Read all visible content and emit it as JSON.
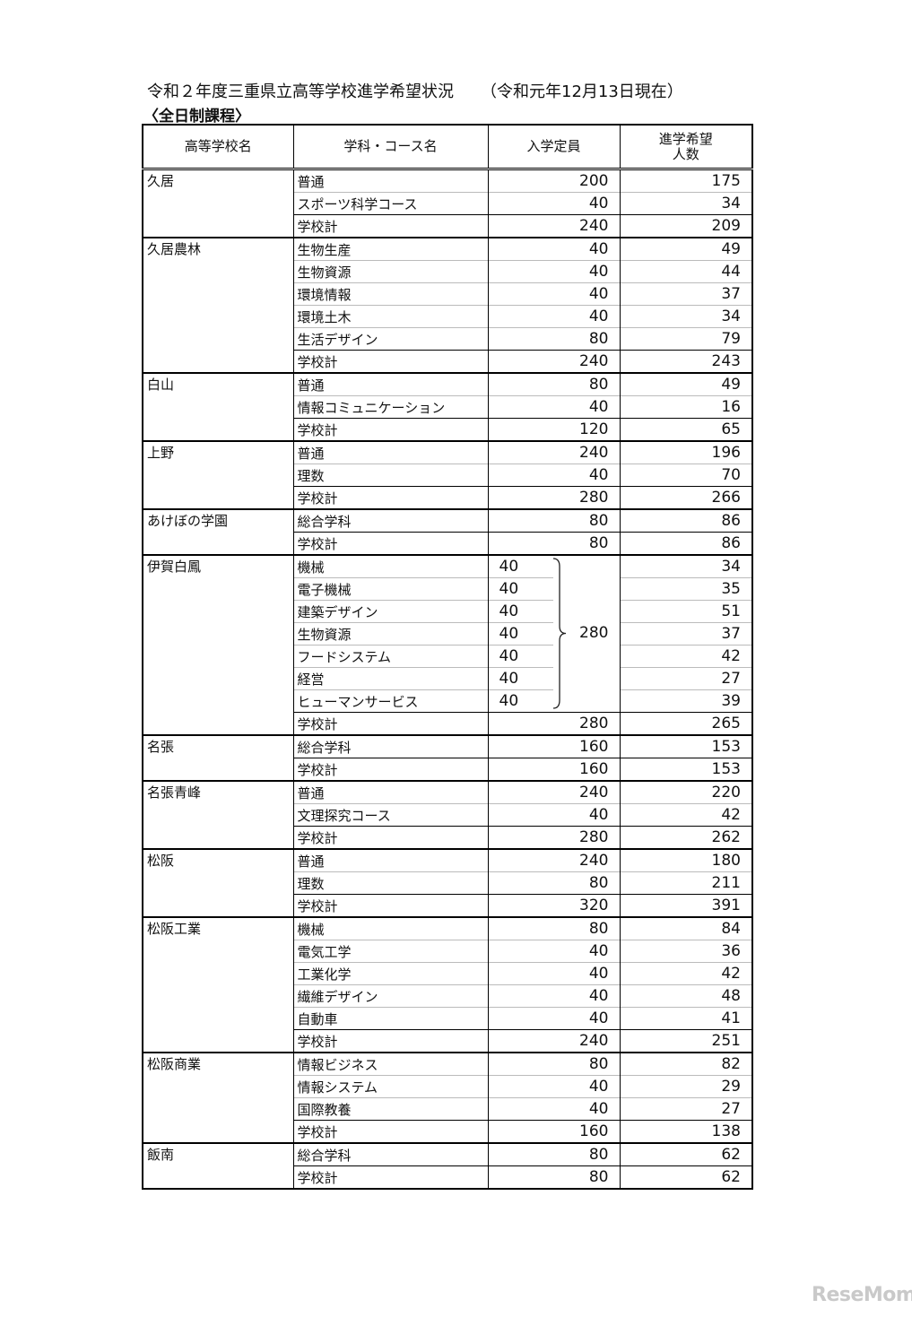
{
  "title": "令和２年度三重県立高等学校進学希望状況",
  "date_note": "（令和元年12月13日現在）",
  "subtitle": "〈全日制課程〉",
  "headers": [
    "高等学校名",
    "学科・コース名",
    "入学定員",
    "進学希望\n人数"
  ],
  "schools": [
    {
      "name": "久居",
      "rows": [
        {
          "course": "普通",
          "capacity": "200",
          "applicants": "175"
        },
        {
          "course": "スポーツ科学コース",
          "capacity": "40",
          "applicants": "34"
        },
        {
          "course": "学校計",
          "capacity": "240",
          "applicants": "209"
        }
      ]
    },
    {
      "name": "久居農林",
      "rows": [
        {
          "course": "生物生産",
          "capacity": "40",
          "applicants": "49"
        },
        {
          "course": "生物資源",
          "capacity": "40",
          "applicants": "44"
        },
        {
          "course": "環境情報",
          "capacity": "40",
          "applicants": "37"
        },
        {
          "course": "環境土木",
          "capacity": "40",
          "applicants": "34"
        },
        {
          "course": "生活デザイン",
          "capacity": "80",
          "applicants": "79"
        },
        {
          "course": "学校計",
          "capacity": "240",
          "applicants": "243"
        }
      ]
    },
    {
      "name": "白山",
      "rows": [
        {
          "course": "普通",
          "capacity": "80",
          "applicants": "49"
        },
        {
          "course": "情報コミュニケーション",
          "capacity": "40",
          "applicants": "16"
        },
        {
          "course": "学校計",
          "capacity": "120",
          "applicants": "65"
        }
      ]
    },
    {
      "name": "上野",
      "rows": [
        {
          "course": "普通",
          "capacity": "240",
          "applicants": "196"
        },
        {
          "course": "理数",
          "capacity": "40",
          "applicants": "70"
        },
        {
          "course": "学校計",
          "capacity": "280",
          "applicants": "266"
        }
      ]
    },
    {
      "name": "あけぼの学園",
      "rows": [
        {
          "course": "総合学科",
          "capacity": "80",
          "applicants": "86"
        },
        {
          "course": "学校計",
          "capacity": "80",
          "applicants": "86"
        }
      ]
    },
    {
      "name": "伊賀白鳳",
      "group_capacity": "280",
      "rows": [
        {
          "course": "機械",
          "capacity": "40",
          "applicants": "34",
          "grouped": true
        },
        {
          "course": "電子機械",
          "capacity": "40",
          "applicants": "35",
          "grouped": true
        },
        {
          "course": "建築デザイン",
          "capacity": "40",
          "applicants": "51",
          "grouped": true
        },
        {
          "course": "生物資源",
          "capacity": "40",
          "applicants": "37",
          "grouped": true
        },
        {
          "course": "フードシステム",
          "capacity": "40",
          "applicants": "42",
          "grouped": true
        },
        {
          "course": "経営",
          "capacity": "40",
          "applicants": "27",
          "grouped": true
        },
        {
          "course": "ヒューマンサービス",
          "capacity": "40",
          "applicants": "39",
          "grouped": true
        },
        {
          "course": "学校計",
          "capacity": "280",
          "applicants": "265"
        }
      ]
    },
    {
      "name": "名張",
      "rows": [
        {
          "course": "総合学科",
          "capacity": "160",
          "applicants": "153"
        },
        {
          "course": "学校計",
          "capacity": "160",
          "applicants": "153"
        }
      ]
    },
    {
      "name": "名張青峰",
      "rows": [
        {
          "course": "普通",
          "capacity": "240",
          "applicants": "220"
        },
        {
          "course": "文理探究コース",
          "capacity": "40",
          "applicants": "42"
        },
        {
          "course": "学校計",
          "capacity": "280",
          "applicants": "262"
        }
      ]
    },
    {
      "name": "松阪",
      "rows": [
        {
          "course": "普通",
          "capacity": "240",
          "applicants": "180"
        },
        {
          "course": "理数",
          "capacity": "80",
          "applicants": "211"
        },
        {
          "course": "学校計",
          "capacity": "320",
          "applicants": "391"
        }
      ]
    },
    {
      "name": "松阪工業",
      "rows": [
        {
          "course": "機械",
          "capacity": "80",
          "applicants": "84"
        },
        {
          "course": "電気工学",
          "capacity": "40",
          "applicants": "36"
        },
        {
          "course": "工業化学",
          "capacity": "40",
          "applicants": "42"
        },
        {
          "course": "繊維デザイン",
          "capacity": "40",
          "applicants": "48"
        },
        {
          "course": "自動車",
          "capacity": "40",
          "applicants": "41"
        },
        {
          "course": "学校計",
          "capacity": "240",
          "applicants": "251"
        }
      ]
    },
    {
      "name": "松阪商業",
      "rows": [
        {
          "course": "情報ビジネス",
          "capacity": "80",
          "applicants": "82"
        },
        {
          "course": "情報システム",
          "capacity": "40",
          "applicants": "29"
        },
        {
          "course": "国際教養",
          "capacity": "40",
          "applicants": "27"
        },
        {
          "course": "学校計",
          "capacity": "160",
          "applicants": "138"
        }
      ]
    },
    {
      "name": "飯南",
      "rows": [
        {
          "course": "総合学科",
          "capacity": "80",
          "applicants": "62"
        },
        {
          "course": "学校計",
          "capacity": "80",
          "applicants": "62"
        }
      ]
    }
  ],
  "watermark": "ReseMom"
}
